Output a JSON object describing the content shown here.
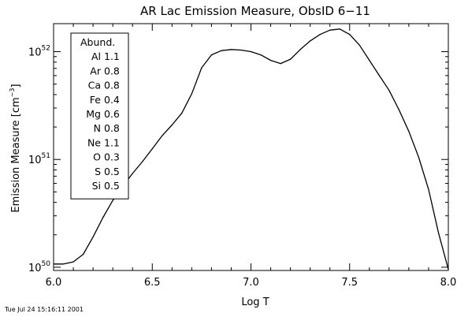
{
  "chart_data": {
    "type": "line",
    "title": "AR Lac Emission Measure, ObsID 6−11",
    "xlabel": "Log T",
    "ylabel": "Emission Measure [cm",
    "ylabel_sup": "−3",
    "ylabel_close": "]",
    "xlim": [
      6.0,
      8.0
    ],
    "ylim_log10": [
      49.97,
      52.26
    ],
    "yscale": "log",
    "x_ticks": [
      6.0,
      6.5,
      7.0,
      7.5,
      8.0
    ],
    "x_tick_labels": [
      "6.0",
      "6.5",
      "7.0",
      "7.5",
      "8.0"
    ],
    "y_ticks_log10": [
      50,
      51,
      52
    ],
    "y_tick_labels": [
      {
        "base": "10",
        "exp": "50"
      },
      {
        "base": "10",
        "exp": "51"
      },
      {
        "base": "10",
        "exp": "52"
      }
    ],
    "grid": false,
    "series": [
      {
        "log_t": [
          6.0,
          6.05,
          6.1,
          6.15,
          6.2,
          6.25,
          6.3,
          6.35,
          6.4,
          6.45,
          6.5,
          6.55,
          6.6,
          6.65,
          6.7,
          6.75,
          6.8,
          6.85,
          6.9,
          6.95,
          7.0,
          7.05,
          7.1,
          7.15,
          7.2,
          7.25,
          7.3,
          7.35,
          7.4,
          7.45,
          7.5,
          7.55,
          7.6,
          7.65,
          7.7,
          7.75,
          7.8,
          7.85,
          7.9,
          7.95,
          8.0
        ],
        "log_em": [
          50.03,
          50.03,
          50.05,
          50.12,
          50.28,
          50.46,
          50.62,
          50.75,
          50.87,
          50.98,
          51.1,
          51.22,
          51.32,
          51.43,
          51.61,
          51.85,
          51.97,
          52.01,
          52.02,
          52.015,
          52.0,
          51.97,
          51.92,
          51.89,
          51.93,
          52.02,
          52.1,
          52.16,
          52.2,
          52.21,
          52.16,
          52.06,
          51.92,
          51.78,
          51.64,
          51.46,
          51.26,
          51.02,
          50.72,
          50.32,
          49.98
        ]
      }
    ],
    "legend": {
      "position": "upper-left",
      "header": "Abund.",
      "entries": [
        {
          "element": "Al",
          "value": "1.1"
        },
        {
          "element": "Ar",
          "value": "0.8"
        },
        {
          "element": "Ca",
          "value": "0.8"
        },
        {
          "element": "Fe",
          "value": "0.4"
        },
        {
          "element": "Mg",
          "value": "0.6"
        },
        {
          "element": "N",
          "value": "0.8"
        },
        {
          "element": "Ne",
          "value": "1.1"
        },
        {
          "element": "O",
          "value": "0.3"
        },
        {
          "element": "S",
          "value": "0.5"
        },
        {
          "element": "Si",
          "value": "0.5"
        }
      ]
    }
  },
  "footer": {
    "timestamp": "Tue Jul 24 15:16:11 2001"
  },
  "colors": {
    "line": "#000000",
    "axes": "#000000",
    "background": "#ffffff"
  }
}
